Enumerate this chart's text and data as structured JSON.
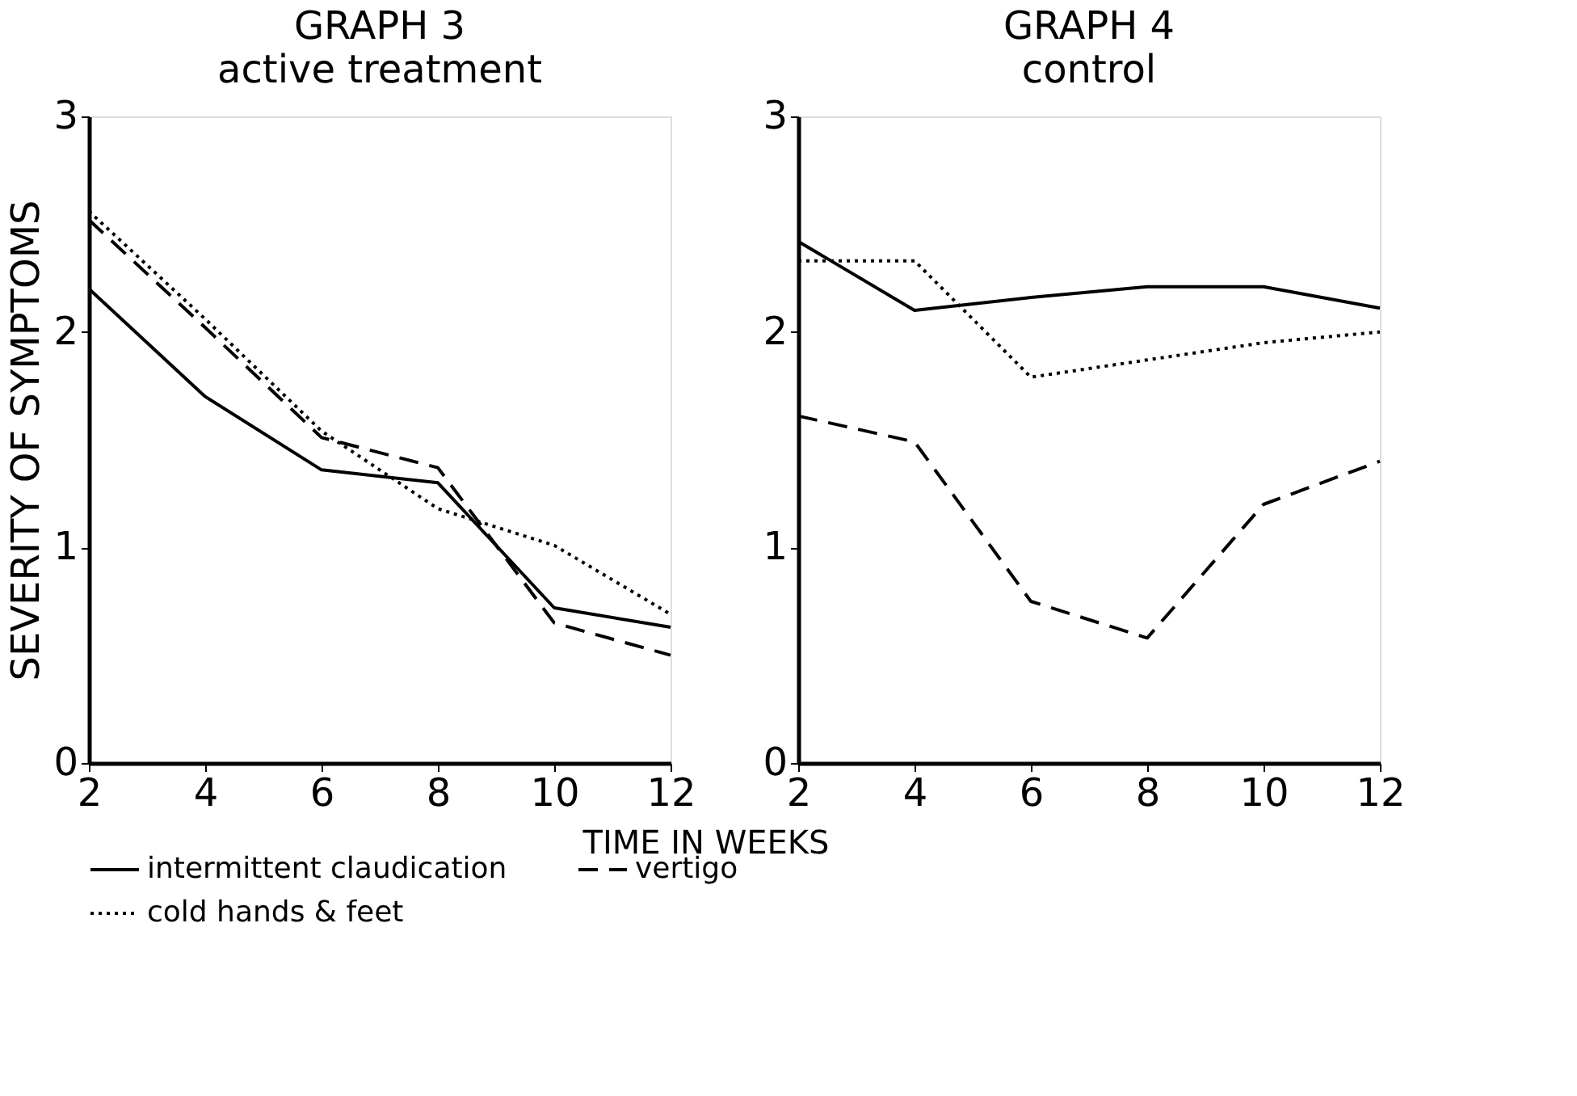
{
  "chart_data": [
    {
      "type": "line",
      "title": "GRAPH 3",
      "subtitle": "active treatment",
      "xlabel": "TIME IN WEEKS",
      "ylabel": "SEVERITY OF SYMPTOMS",
      "x": [
        2,
        4,
        6,
        8,
        10,
        12
      ],
      "xlim": [
        2,
        12
      ],
      "xticks": [
        2,
        4,
        6,
        8,
        10,
        12
      ],
      "ylim": [
        0,
        3
      ],
      "yticks": [
        0,
        1,
        2,
        3
      ],
      "grid": false,
      "legend": "bottom",
      "marker": "none",
      "series": [
        {
          "name": "intermittent claudication",
          "color": "#000000",
          "line_style": "solid",
          "values": [
            2.2,
            1.7,
            1.36,
            1.3,
            0.72,
            0.63
          ]
        },
        {
          "name": "vertigo",
          "color": "#000000",
          "line_style": "dashed",
          "values": [
            2.52,
            2.02,
            1.51,
            1.37,
            0.65,
            0.5
          ]
        },
        {
          "name": "cold hands & feet",
          "color": "#000000",
          "line_style": "dotted",
          "values": [
            2.56,
            2.06,
            1.54,
            1.18,
            1.01,
            0.69
          ]
        }
      ]
    },
    {
      "type": "line",
      "title": "GRAPH 4",
      "subtitle": "control",
      "x": [
        2,
        4,
        6,
        8,
        10,
        12
      ],
      "xlim": [
        2,
        12
      ],
      "xticks": [
        2,
        4,
        6,
        8,
        10,
        12
      ],
      "ylim": [
        0,
        3
      ],
      "yticks": [
        0,
        1,
        2,
        3
      ],
      "grid": false,
      "legend": "bottom",
      "marker": "none",
      "series": [
        {
          "name": "intermittent claudication",
          "color": "#000000",
          "line_style": "solid",
          "values": [
            2.42,
            2.1,
            2.16,
            2.21,
            2.21,
            2.11
          ]
        },
        {
          "name": "vertigo",
          "color": "#000000",
          "line_style": "dashed",
          "values": [
            1.61,
            1.49,
            0.75,
            0.58,
            1.2,
            1.4
          ]
        },
        {
          "name": "cold hands & feet",
          "color": "#000000",
          "line_style": "dotted",
          "values": [
            2.33,
            2.33,
            1.79,
            1.87,
            1.95,
            2.0
          ]
        }
      ]
    }
  ]
}
